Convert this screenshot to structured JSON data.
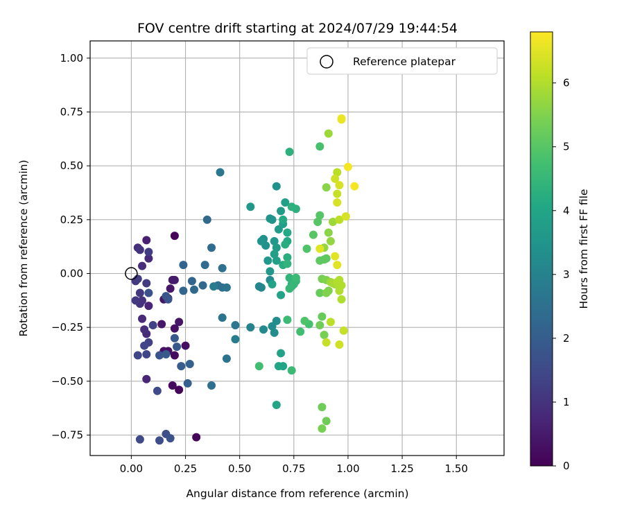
{
  "chart_data": {
    "type": "scatter",
    "title": "FOV centre drift starting at 2024/07/29 19:44:54",
    "xlabel": "Angular distance from reference (arcmin)",
    "ylabel": "Rotation from reference (arcmin)",
    "xlim": [
      -0.19,
      1.72
    ],
    "ylim": [
      -0.845,
      1.08
    ],
    "xticks": [
      "0.00",
      "0.25",
      "0.50",
      "0.75",
      "1.00",
      "1.25",
      "1.50"
    ],
    "yticks": [
      "−0.75",
      "−0.50",
      "−0.25",
      "0.00",
      "0.25",
      "0.50",
      "0.75",
      "1.00"
    ],
    "grid": true,
    "legend": {
      "placement": "top-right",
      "label": "Reference platepar"
    },
    "reference_point": {
      "x": 0.0,
      "y": 0.0
    },
    "colorbar": {
      "label": "Hours from first FF file",
      "range": [
        0,
        6.8
      ],
      "ticks": [
        "0",
        "1",
        "2",
        "3",
        "4",
        "5",
        "6"
      ],
      "colormap": "viridis"
    },
    "points": [
      {
        "x": 0.2,
        "y": 0.175,
        "h": 0.1
      },
      {
        "x": 0.3,
        "y": -0.76,
        "h": 0.1
      },
      {
        "x": 0.22,
        "y": -0.54,
        "h": 0.1
      },
      {
        "x": 0.19,
        "y": -0.52,
        "h": 0.2
      },
      {
        "x": 0.2,
        "y": -0.38,
        "h": 0.2
      },
      {
        "x": 0.17,
        "y": -0.36,
        "h": 0.3
      },
      {
        "x": 0.15,
        "y": -0.36,
        "h": 0.3
      },
      {
        "x": 0.25,
        "y": -0.335,
        "h": 0.3
      },
      {
        "x": 0.2,
        "y": -0.255,
        "h": 0.3
      },
      {
        "x": 0.22,
        "y": -0.225,
        "h": 0.4
      },
      {
        "x": 0.14,
        "y": -0.235,
        "h": 0.4
      },
      {
        "x": 0.15,
        "y": -0.12,
        "h": 0.4
      },
      {
        "x": 0.18,
        "y": -0.07,
        "h": 0.4
      },
      {
        "x": 0.2,
        "y": -0.03,
        "h": 0.5
      },
      {
        "x": 0.19,
        "y": -0.03,
        "h": 0.5
      },
      {
        "x": 0.17,
        "y": -0.115,
        "h": 0.5
      },
      {
        "x": 0.07,
        "y": 0.155,
        "h": 0.6
      },
      {
        "x": 0.07,
        "y": -0.49,
        "h": 0.7
      },
      {
        "x": 0.08,
        "y": -0.15,
        "h": 0.7
      },
      {
        "x": 0.08,
        "y": 0.07,
        "h": 0.8
      },
      {
        "x": 0.07,
        "y": -0.28,
        "h": 0.8
      },
      {
        "x": 0.05,
        "y": -0.21,
        "h": 0.8
      },
      {
        "x": 0.06,
        "y": -0.26,
        "h": 0.9
      },
      {
        "x": 0.05,
        "y": 0.035,
        "h": 0.9
      },
      {
        "x": 0.03,
        "y": 0.12,
        "h": 0.9
      },
      {
        "x": 0.04,
        "y": 0.11,
        "h": 1.0
      },
      {
        "x": 0.04,
        "y": -0.14,
        "h": 1.0
      },
      {
        "x": 0.05,
        "y": -0.125,
        "h": 1.0
      },
      {
        "x": 0.02,
        "y": -0.125,
        "h": 1.1
      },
      {
        "x": 0.04,
        "y": -0.09,
        "h": 1.1
      },
      {
        "x": 0.02,
        "y": -0.035,
        "h": 1.1
      },
      {
        "x": 0.03,
        "y": -0.025,
        "h": 1.2
      },
      {
        "x": 0.07,
        "y": -0.045,
        "h": 1.2
      },
      {
        "x": 0.08,
        "y": 0.1,
        "h": 1.2
      },
      {
        "x": 0.1,
        "y": -0.24,
        "h": 1.3
      },
      {
        "x": 0.08,
        "y": -0.32,
        "h": 1.3
      },
      {
        "x": 0.03,
        "y": -0.38,
        "h": 1.4
      },
      {
        "x": 0.06,
        "y": -0.335,
        "h": 1.4
      },
      {
        "x": 0.07,
        "y": -0.375,
        "h": 1.4
      },
      {
        "x": 0.04,
        "y": -0.77,
        "h": 1.5
      },
      {
        "x": 0.12,
        "y": -0.545,
        "h": 1.5
      },
      {
        "x": 0.16,
        "y": -0.745,
        "h": 1.6
      },
      {
        "x": 0.13,
        "y": -0.775,
        "h": 1.6
      },
      {
        "x": 0.18,
        "y": -0.765,
        "h": 1.7
      },
      {
        "x": 0.08,
        "y": -0.09,
        "h": 1.7
      },
      {
        "x": 0.16,
        "y": -0.105,
        "h": 1.8
      },
      {
        "x": 0.17,
        "y": -0.12,
        "h": 1.8
      },
      {
        "x": 0.13,
        "y": -0.38,
        "h": 1.8
      },
      {
        "x": 0.16,
        "y": -0.375,
        "h": 1.9
      },
      {
        "x": 0.21,
        "y": -0.34,
        "h": 1.9
      },
      {
        "x": 0.2,
        "y": -0.3,
        "h": 1.9
      },
      {
        "x": 0.23,
        "y": -0.43,
        "h": 2.0
      },
      {
        "x": 0.27,
        "y": -0.42,
        "h": 2.1
      },
      {
        "x": 0.26,
        "y": -0.51,
        "h": 2.1
      },
      {
        "x": 0.24,
        "y": 0.04,
        "h": 2.2
      },
      {
        "x": 0.24,
        "y": -0.08,
        "h": 2.2
      },
      {
        "x": 0.28,
        "y": -0.035,
        "h": 2.2
      },
      {
        "x": 0.29,
        "y": -0.075,
        "h": 2.3
      },
      {
        "x": 0.33,
        "y": -0.055,
        "h": 2.3
      },
      {
        "x": 0.35,
        "y": 0.25,
        "h": 2.3
      },
      {
        "x": 0.34,
        "y": 0.04,
        "h": 2.4
      },
      {
        "x": 0.37,
        "y": 0.12,
        "h": 2.4
      },
      {
        "x": 0.37,
        "y": -0.52,
        "h": 2.5
      },
      {
        "x": 0.42,
        "y": 0.025,
        "h": 2.5
      },
      {
        "x": 0.4,
        "y": -0.055,
        "h": 2.5
      },
      {
        "x": 0.42,
        "y": -0.065,
        "h": 2.5
      },
      {
        "x": 0.42,
        "y": -0.205,
        "h": 2.6
      },
      {
        "x": 0.44,
        "y": -0.065,
        "h": 2.6
      },
      {
        "x": 0.44,
        "y": -0.395,
        "h": 2.6
      },
      {
        "x": 0.41,
        "y": 0.47,
        "h": 2.7
      },
      {
        "x": 0.48,
        "y": -0.24,
        "h": 2.7
      },
      {
        "x": 0.48,
        "y": -0.305,
        "h": 2.8
      },
      {
        "x": 0.38,
        "y": -0.06,
        "h": 2.8
      },
      {
        "x": 0.55,
        "y": -0.25,
        "h": 3.0
      },
      {
        "x": 0.59,
        "y": -0.06,
        "h": 3.1
      },
      {
        "x": 0.6,
        "y": -0.065,
        "h": 3.1
      },
      {
        "x": 0.64,
        "y": -0.03,
        "h": 3.2
      },
      {
        "x": 0.61,
        "y": -0.26,
        "h": 3.2
      },
      {
        "x": 0.67,
        "y": -0.22,
        "h": 3.3
      },
      {
        "x": 0.65,
        "y": -0.245,
        "h": 3.3
      },
      {
        "x": 0.66,
        "y": -0.275,
        "h": 3.3
      },
      {
        "x": 0.67,
        "y": 0.405,
        "h": 3.4
      },
      {
        "x": 0.62,
        "y": 0.13,
        "h": 3.4
      },
      {
        "x": 0.61,
        "y": 0.16,
        "h": 3.4
      },
      {
        "x": 0.6,
        "y": 0.15,
        "h": 3.5
      },
      {
        "x": 0.64,
        "y": 0.255,
        "h": 3.5
      },
      {
        "x": 0.65,
        "y": 0.25,
        "h": 3.5
      },
      {
        "x": 0.63,
        "y": 0.06,
        "h": 3.6
      },
      {
        "x": 0.64,
        "y": 0.01,
        "h": 3.6
      },
      {
        "x": 0.55,
        "y": 0.31,
        "h": 3.6
      },
      {
        "x": 0.66,
        "y": 0.15,
        "h": 3.6
      },
      {
        "x": 0.67,
        "y": 0.12,
        "h": 3.7
      },
      {
        "x": 0.68,
        "y": 0.205,
        "h": 3.7
      },
      {
        "x": 0.69,
        "y": 0.29,
        "h": 3.7
      },
      {
        "x": 0.71,
        "y": 0.33,
        "h": 3.8
      },
      {
        "x": 0.7,
        "y": 0.23,
        "h": 3.8
      },
      {
        "x": 0.67,
        "y": 0.06,
        "h": 3.8
      },
      {
        "x": 0.66,
        "y": 0.09,
        "h": 3.8
      },
      {
        "x": 0.65,
        "y": -0.05,
        "h": 3.9
      },
      {
        "x": 0.69,
        "y": -0.1,
        "h": 3.9
      },
      {
        "x": 0.69,
        "y": -0.37,
        "h": 3.9
      },
      {
        "x": 0.68,
        "y": -0.43,
        "h": 4.0
      },
      {
        "x": 0.7,
        "y": -0.43,
        "h": 4.0
      },
      {
        "x": 0.67,
        "y": -0.61,
        "h": 4.0
      },
      {
        "x": 0.7,
        "y": 0.25,
        "h": 4.1
      },
      {
        "x": 0.72,
        "y": 0.19,
        "h": 4.1
      },
      {
        "x": 0.72,
        "y": 0.15,
        "h": 4.1
      },
      {
        "x": 0.71,
        "y": 0.135,
        "h": 4.2
      },
      {
        "x": 0.72,
        "y": 0.075,
        "h": 4.2
      },
      {
        "x": 0.7,
        "y": 0.04,
        "h": 4.2
      },
      {
        "x": 0.74,
        "y": 0.31,
        "h": 4.3
      },
      {
        "x": 0.76,
        "y": 0.3,
        "h": 4.3
      },
      {
        "x": 0.73,
        "y": 0.565,
        "h": 4.3
      },
      {
        "x": 0.72,
        "y": 0.045,
        "h": 4.4
      },
      {
        "x": 0.73,
        "y": -0.02,
        "h": 4.4
      },
      {
        "x": 0.74,
        "y": -0.05,
        "h": 4.4
      },
      {
        "x": 0.74,
        "y": -0.06,
        "h": 4.4
      },
      {
        "x": 0.73,
        "y": -0.07,
        "h": 4.5
      },
      {
        "x": 0.75,
        "y": -0.05,
        "h": 4.5
      },
      {
        "x": 0.76,
        "y": -0.035,
        "h": 4.5
      },
      {
        "x": 0.76,
        "y": -0.02,
        "h": 4.6
      },
      {
        "x": 0.72,
        "y": -0.215,
        "h": 4.6
      },
      {
        "x": 0.74,
        "y": -0.45,
        "h": 4.6
      },
      {
        "x": 0.59,
        "y": -0.43,
        "h": 4.7
      },
      {
        "x": 0.78,
        "y": -0.27,
        "h": 4.7
      },
      {
        "x": 0.87,
        "y": 0.59,
        "h": 4.8
      },
      {
        "x": 0.82,
        "y": -0.235,
        "h": 4.8
      },
      {
        "x": 0.8,
        "y": -0.22,
        "h": 4.9
      },
      {
        "x": 0.81,
        "y": 0.115,
        "h": 4.9
      },
      {
        "x": 0.84,
        "y": 0.18,
        "h": 5.0
      },
      {
        "x": 0.86,
        "y": 0.24,
        "h": 5.0
      },
      {
        "x": 0.87,
        "y": 0.27,
        "h": 5.0
      },
      {
        "x": 0.87,
        "y": 0.06,
        "h": 5.1
      },
      {
        "x": 0.89,
        "y": 0.065,
        "h": 5.1
      },
      {
        "x": 0.9,
        "y": 0.07,
        "h": 5.1
      },
      {
        "x": 0.87,
        "y": -0.09,
        "h": 5.2
      },
      {
        "x": 0.88,
        "y": -0.2,
        "h": 5.2
      },
      {
        "x": 0.87,
        "y": -0.24,
        "h": 5.3
      },
      {
        "x": 0.88,
        "y": -0.62,
        "h": 5.3
      },
      {
        "x": 0.9,
        "y": -0.685,
        "h": 5.3
      },
      {
        "x": 0.88,
        "y": -0.72,
        "h": 5.4
      },
      {
        "x": 0.89,
        "y": -0.285,
        "h": 5.4
      },
      {
        "x": 0.88,
        "y": -0.025,
        "h": 5.4
      },
      {
        "x": 0.9,
        "y": -0.03,
        "h": 5.5
      },
      {
        "x": 0.9,
        "y": -0.09,
        "h": 5.5
      },
      {
        "x": 0.91,
        "y": -0.08,
        "h": 5.5
      },
      {
        "x": 0.9,
        "y": 0.4,
        "h": 5.6
      },
      {
        "x": 0.91,
        "y": 0.19,
        "h": 5.6
      },
      {
        "x": 0.92,
        "y": 0.15,
        "h": 5.7
      },
      {
        "x": 0.89,
        "y": 0.12,
        "h": 5.7
      },
      {
        "x": 0.93,
        "y": 0.24,
        "h": 5.8
      },
      {
        "x": 0.91,
        "y": 0.65,
        "h": 5.8
      },
      {
        "x": 0.92,
        "y": -0.04,
        "h": 5.8
      },
      {
        "x": 0.94,
        "y": -0.05,
        "h": 5.9
      },
      {
        "x": 0.93,
        "y": -0.045,
        "h": 5.9
      },
      {
        "x": 0.95,
        "y": -0.04,
        "h": 6.0
      },
      {
        "x": 0.96,
        "y": -0.03,
        "h": 6.0
      },
      {
        "x": 0.96,
        "y": -0.08,
        "h": 6.0
      },
      {
        "x": 0.97,
        "y": -0.055,
        "h": 6.0
      },
      {
        "x": 0.97,
        "y": -0.12,
        "h": 6.0
      },
      {
        "x": 0.96,
        "y": 0.25,
        "h": 6.1
      },
      {
        "x": 0.95,
        "y": 0.47,
        "h": 6.1
      },
      {
        "x": 0.92,
        "y": -0.225,
        "h": 6.1
      },
      {
        "x": 0.95,
        "y": 0.37,
        "h": 6.2
      },
      {
        "x": 0.98,
        "y": -0.265,
        "h": 6.2
      },
      {
        "x": 0.9,
        "y": -0.32,
        "h": 6.2
      },
      {
        "x": 0.96,
        "y": -0.33,
        "h": 6.3
      },
      {
        "x": 0.94,
        "y": 0.44,
        "h": 6.3
      },
      {
        "x": 0.96,
        "y": 0.41,
        "h": 6.4
      },
      {
        "x": 0.95,
        "y": 0.33,
        "h": 6.4
      },
      {
        "x": 0.99,
        "y": 0.265,
        "h": 6.4
      },
      {
        "x": 0.87,
        "y": 0.115,
        "h": 6.5
      },
      {
        "x": 0.95,
        "y": 0.04,
        "h": 6.5
      },
      {
        "x": 0.94,
        "y": 0.08,
        "h": 6.5
      },
      {
        "x": 0.97,
        "y": 0.715,
        "h": 6.6
      },
      {
        "x": 0.97,
        "y": 0.72,
        "h": 6.6
      },
      {
        "x": 1.0,
        "y": 0.495,
        "h": 6.7
      },
      {
        "x": 1.03,
        "y": 0.405,
        "h": 6.7
      }
    ]
  }
}
